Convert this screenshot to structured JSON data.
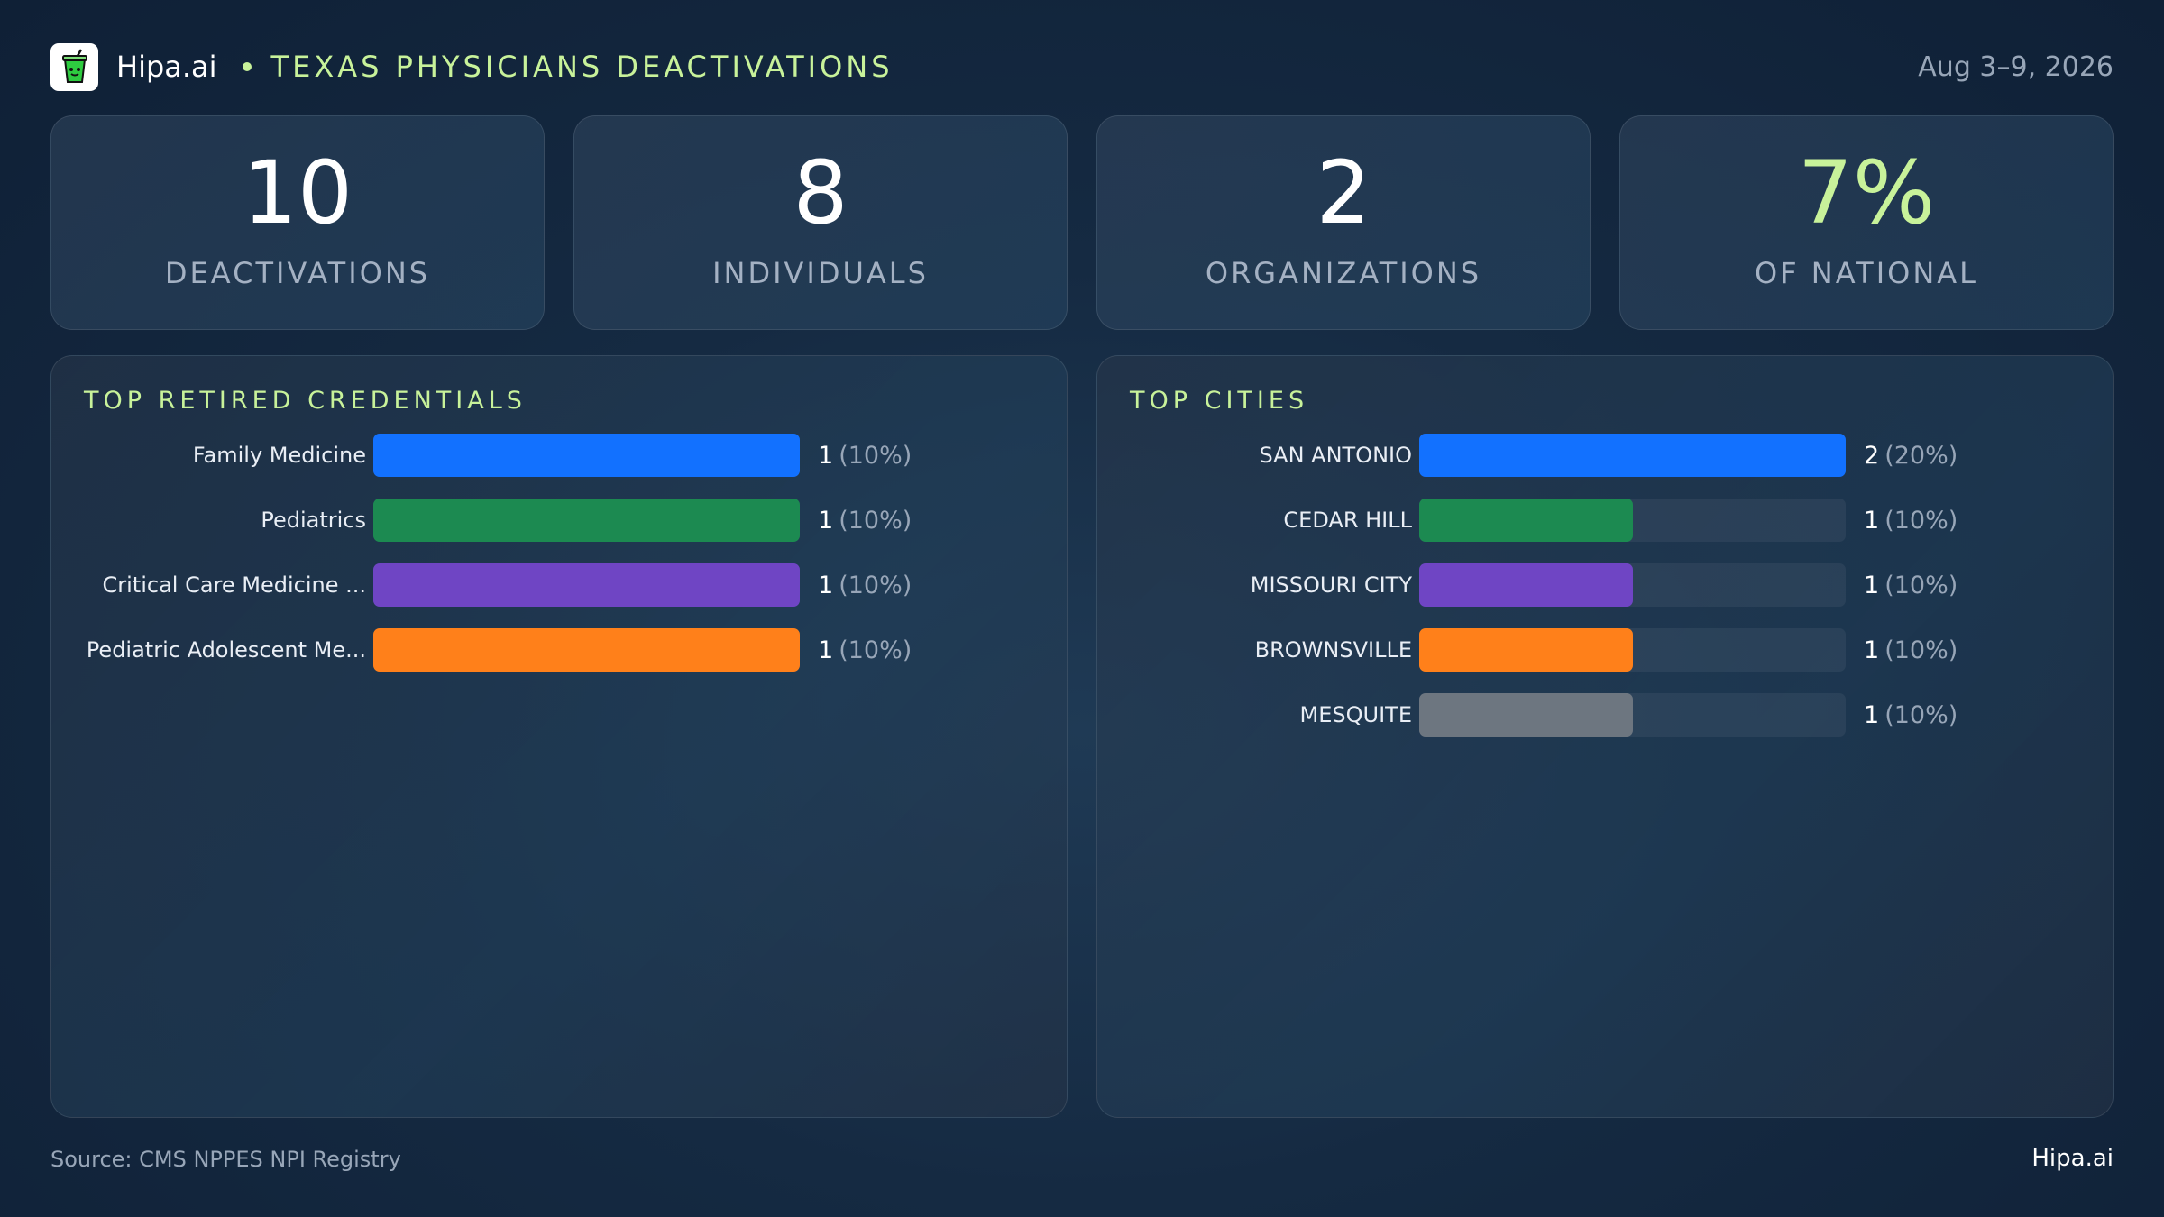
{
  "header": {
    "brand": "Hipa.ai",
    "title": "TEXAS PHYSICIANS DEACTIVATIONS",
    "date_range": "Aug 3–9, 2026",
    "logo_icon": "cup-logo-icon"
  },
  "kpis": [
    {
      "value": "10",
      "label": "DEACTIVATIONS"
    },
    {
      "value": "8",
      "label": "INDIVIDUALS"
    },
    {
      "value": "2",
      "label": "ORGANIZATIONS"
    },
    {
      "value": "7%",
      "label": "OF NATIONAL"
    }
  ],
  "colors": {
    "accent": "#c8f29a",
    "blue": "#1271ff",
    "green": "#1c8a51",
    "purple": "#6f45c4",
    "orange": "#ff801a",
    "gray": "#6d7680"
  },
  "chart_data": [
    {
      "type": "bar",
      "orientation": "horizontal",
      "title": "TOP RETIRED CREDENTIALS",
      "categories": [
        "Family Medicine",
        "Pediatrics",
        "Critical Care Medicine ...",
        "Pediatric Adolescent Me..."
      ],
      "values": [
        1,
        1,
        1,
        1
      ],
      "value_labels": [
        "1",
        "1",
        "1",
        "1"
      ],
      "pct_labels": [
        "(10%)",
        "(10%)",
        "(10%)",
        "(10%)"
      ],
      "colors": [
        "#1271ff",
        "#1c8a51",
        "#6f45c4",
        "#ff801a"
      ],
      "xlim": [
        0,
        1
      ]
    },
    {
      "type": "bar",
      "orientation": "horizontal",
      "title": "TOP CITIES",
      "categories": [
        "SAN ANTONIO",
        "CEDAR HILL",
        "MISSOURI CITY",
        "BROWNSVILLE",
        "MESQUITE"
      ],
      "values": [
        2,
        1,
        1,
        1,
        1
      ],
      "value_labels": [
        "2",
        "1",
        "1",
        "1",
        "1"
      ],
      "pct_labels": [
        "(20%)",
        "(10%)",
        "(10%)",
        "(10%)",
        "(10%)"
      ],
      "colors": [
        "#1271ff",
        "#1c8a51",
        "#6f45c4",
        "#ff801a",
        "#6d7680"
      ],
      "xlim": [
        0,
        2
      ]
    }
  ],
  "footer": {
    "source": "Source: CMS NPPES NPI Registry",
    "brand": "Hipa.ai"
  }
}
